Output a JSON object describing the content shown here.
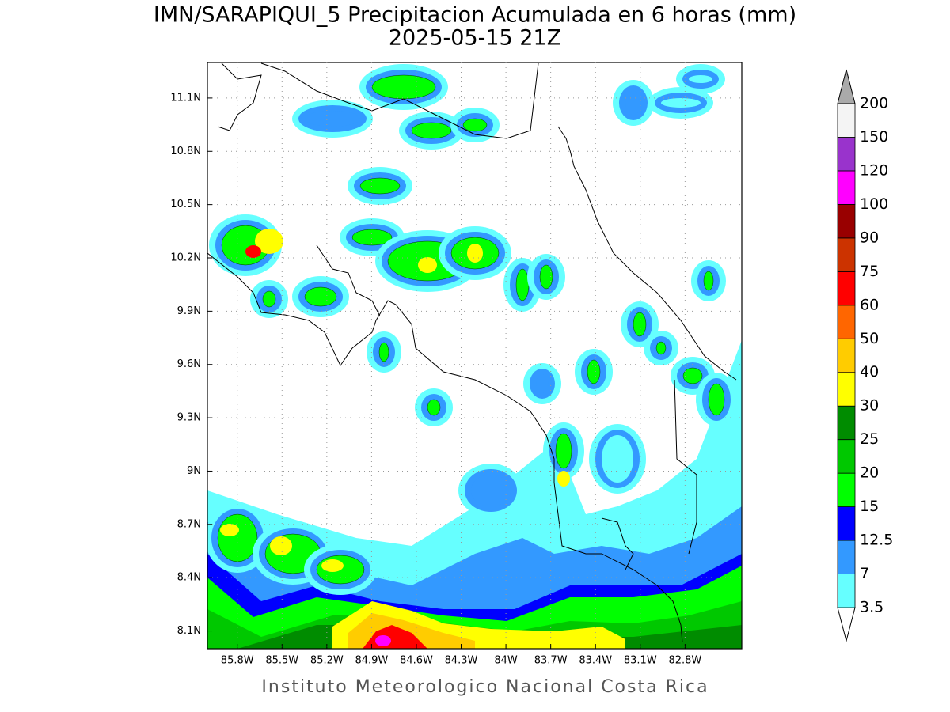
{
  "map": {
    "title": "IMN/SARAPIQUI_5 Precipitacion Acumulada en 6 horas (mm)",
    "subtitle": "2025-05-15 21Z",
    "footer": "Instituto Meteorologico Nacional Costa Rica",
    "lonlim": [
      -86.0,
      -82.42
    ],
    "latlim": [
      8.0,
      11.3
    ],
    "lon_ticks": [
      {
        "value": -85.8,
        "label": "85.8W"
      },
      {
        "value": -85.5,
        "label": "85.5W"
      },
      {
        "value": -85.2,
        "label": "85.2W"
      },
      {
        "value": -84.9,
        "label": "84.9W"
      },
      {
        "value": -84.6,
        "label": "84.6W"
      },
      {
        "value": -84.3,
        "label": "84.3W"
      },
      {
        "value": -84.0,
        "label": "84W"
      },
      {
        "value": -83.7,
        "label": "83.7W"
      },
      {
        "value": -83.4,
        "label": "83.4W"
      },
      {
        "value": -83.1,
        "label": "83.1W"
      },
      {
        "value": -82.8,
        "label": "82.8W"
      }
    ],
    "lat_ticks": [
      {
        "value": 8.1,
        "label": "8.1N"
      },
      {
        "value": 8.4,
        "label": "8.4N"
      },
      {
        "value": 8.7,
        "label": "8.7N"
      },
      {
        "value": 9.0,
        "label": "9N"
      },
      {
        "value": 9.3,
        "label": "9.3N"
      },
      {
        "value": 9.6,
        "label": "9.6N"
      },
      {
        "value": 9.9,
        "label": "9.9N"
      },
      {
        "value": 10.2,
        "label": "10.2N"
      },
      {
        "value": 10.5,
        "label": "10.5N"
      },
      {
        "value": 10.8,
        "label": "10.8N"
      },
      {
        "value": 11.1,
        "label": "11.1N"
      }
    ],
    "grid": true,
    "colorbar": {
      "levels": [
        3.5,
        7,
        12.5,
        15,
        20,
        25,
        30,
        40,
        50,
        60,
        75,
        90,
        100,
        120,
        150,
        200
      ],
      "colors": [
        "#66ffff",
        "#3399ff",
        "#0000ff",
        "#00ff00",
        "#00c800",
        "#008c00",
        "#ffff00",
        "#ffcc00",
        "#ff6600",
        "#ff0000",
        "#cc3300",
        "#990000",
        "#ff00ff",
        "#9933cc",
        "#f4f4f4"
      ],
      "under_color": "#ffffff",
      "over_color": "#aaaaaa"
    }
  }
}
